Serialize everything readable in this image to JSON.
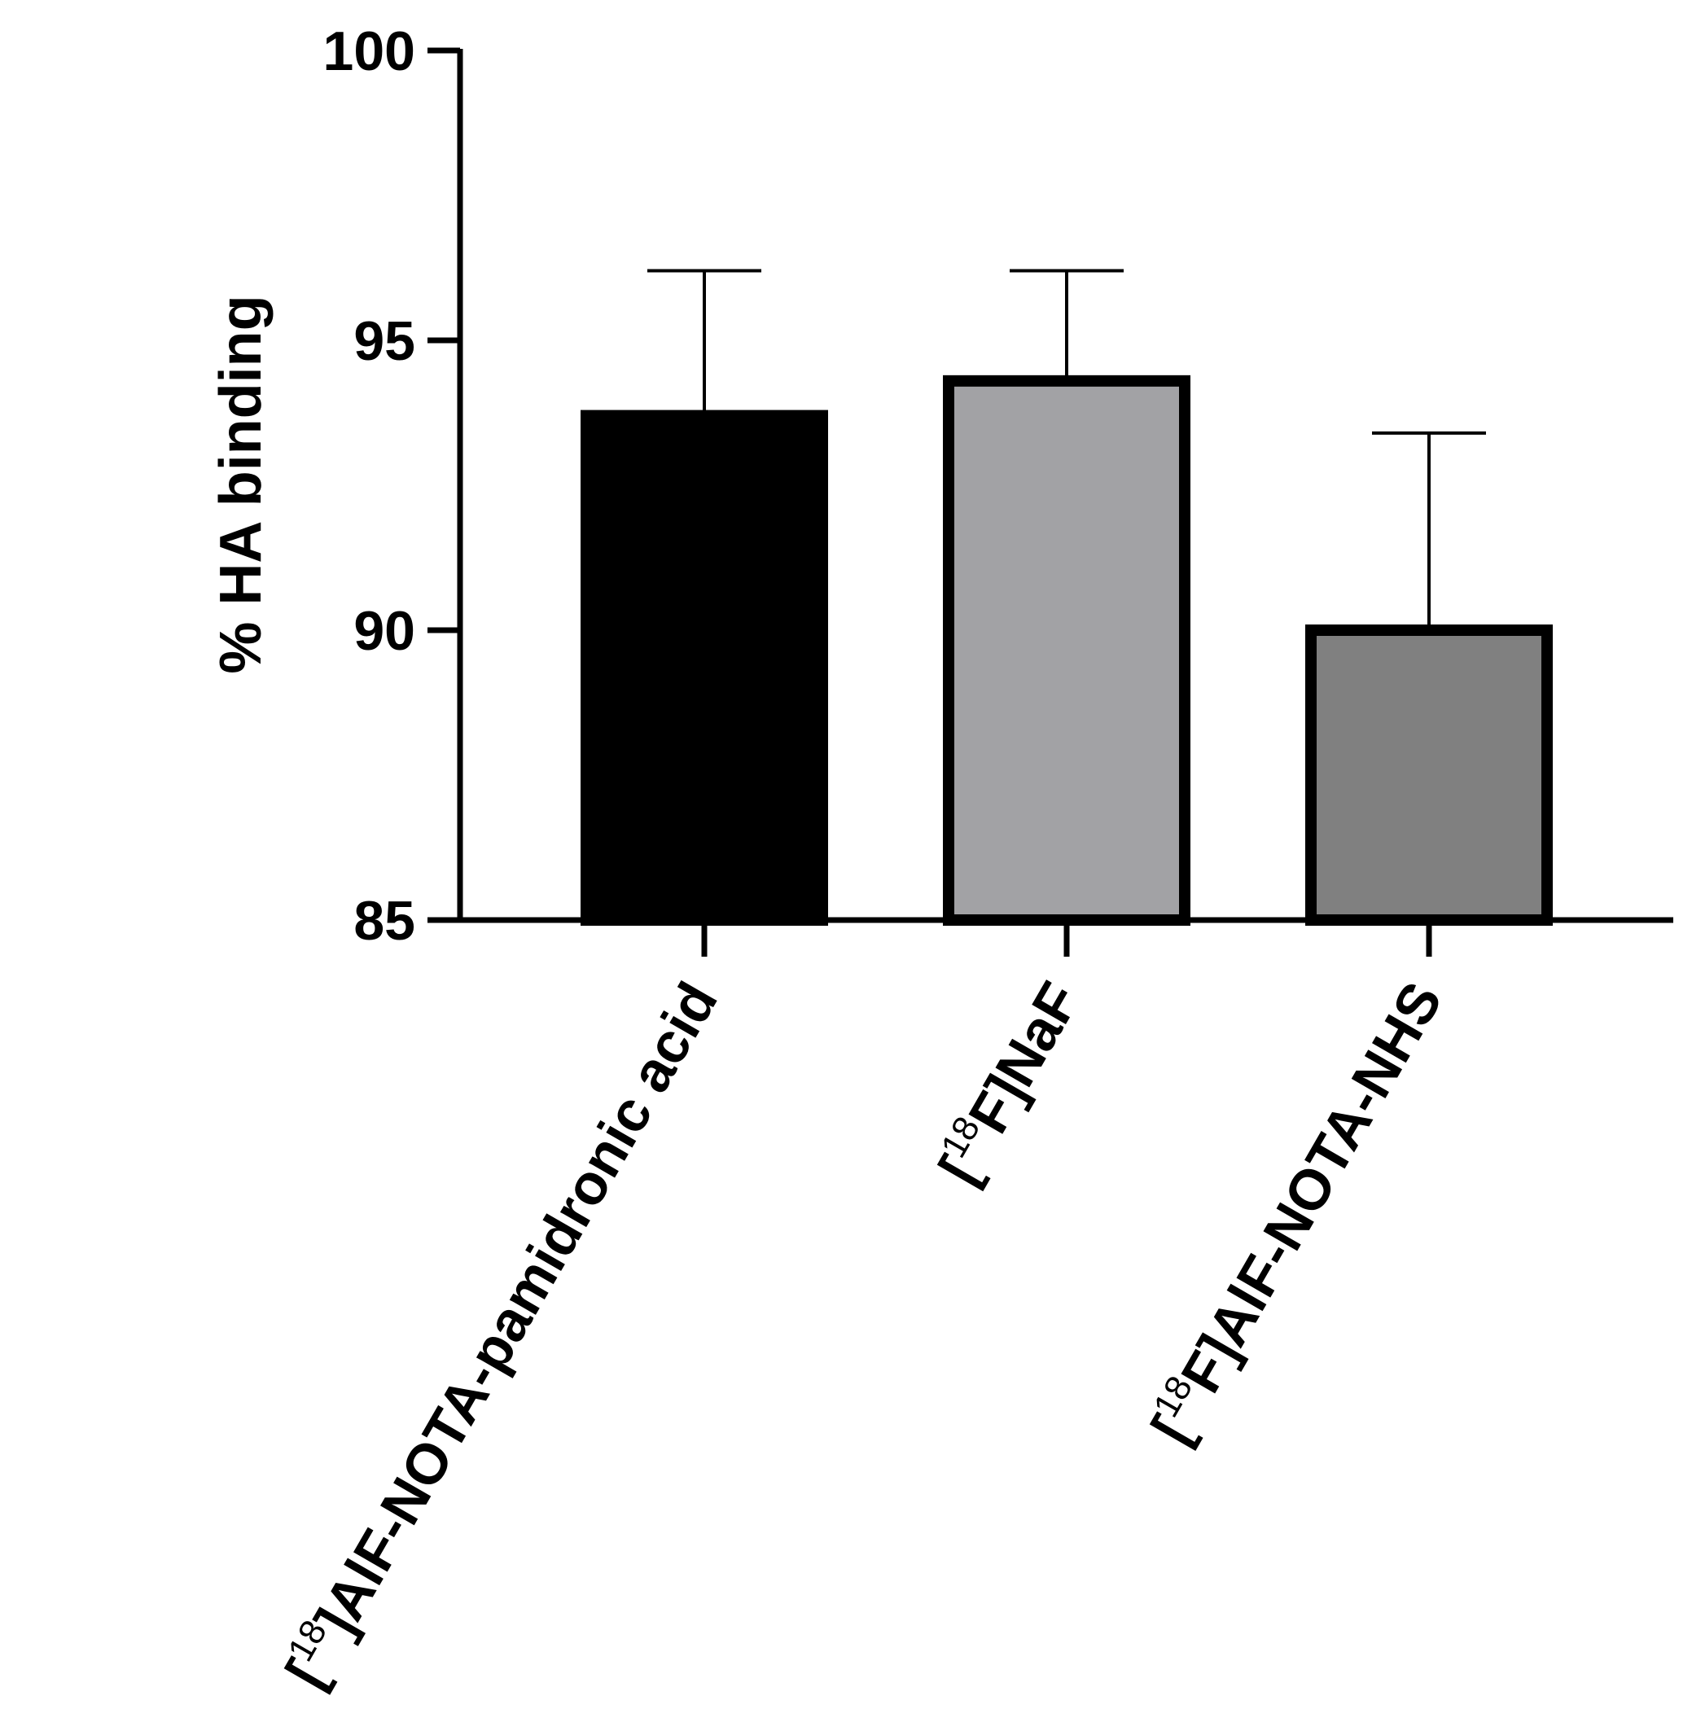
{
  "chart_data": {
    "type": "bar",
    "ylabel": "% HA binding",
    "ylim": [
      85,
      100
    ],
    "yticks": [
      85,
      90,
      95,
      100
    ],
    "grid": false,
    "categories": [
      {
        "prefix": "[",
        "sup": "18",
        "rest": "]AlF-NOTA-pamidronic acid"
      },
      {
        "prefix": "[",
        "sup": "18",
        "rest": "F]NaF"
      },
      {
        "prefix": "[",
        "sup": "18",
        "rest": "F]AlF-NOTA-NHS"
      }
    ],
    "values": [
      93.7,
      94.3,
      90.0
    ],
    "errors": [
      2.5,
      1.9,
      3.4
    ],
    "colors": [
      "#000000",
      "#a2a2a5",
      "#808080"
    ]
  }
}
